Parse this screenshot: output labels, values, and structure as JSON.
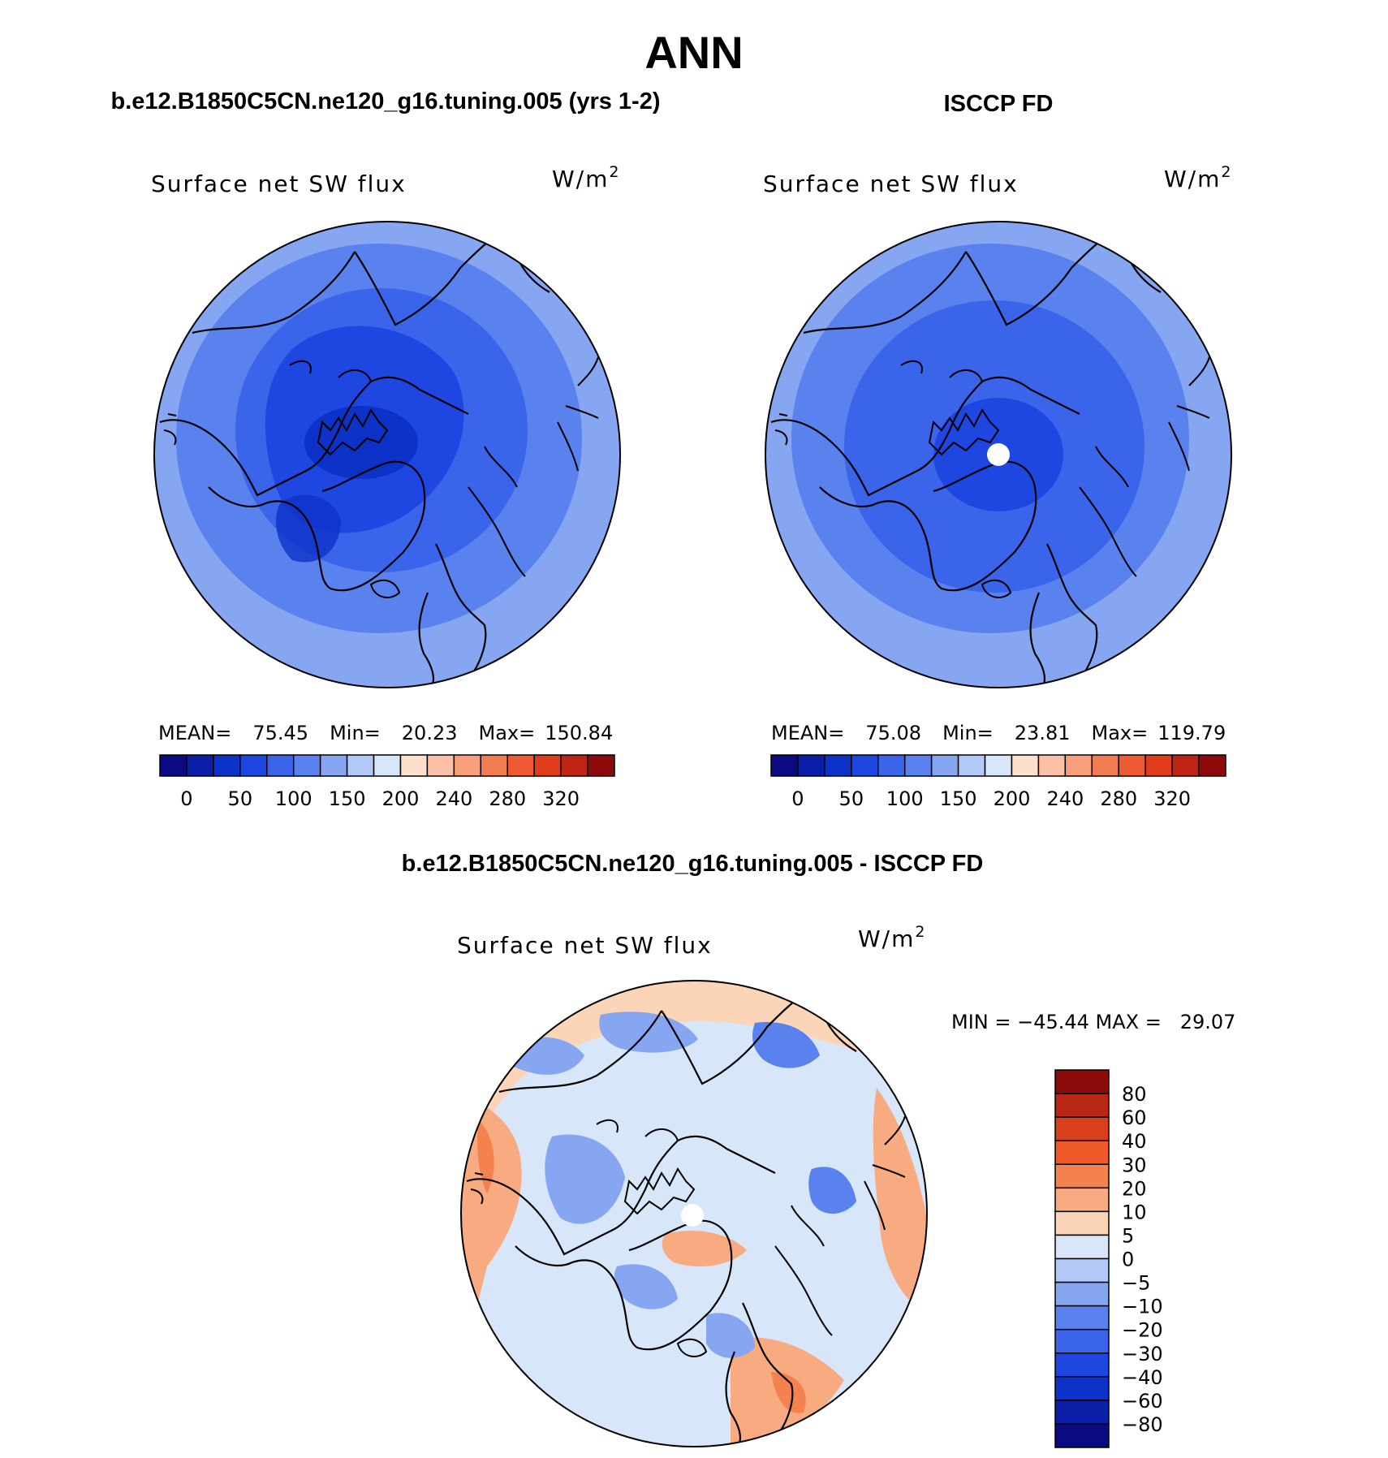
{
  "page_title": "ANN",
  "panels": [
    {
      "header": "b.e12.B1850C5CN.ne120_g16.tuning.005 (yrs 1-2)",
      "variable": "Surface net SW flux",
      "units": "W/m",
      "units_exp": "2",
      "stats": {
        "mean_label": "MEAN=",
        "mean": "75.45",
        "min_label": "Min=",
        "min": "20.23",
        "max_label": "Max=",
        "max": "150.84"
      }
    },
    {
      "header": "ISCCP FD",
      "variable": "Surface net SW flux",
      "units": "W/m",
      "units_exp": "2",
      "stats": {
        "mean_label": "MEAN=",
        "mean": "75.08",
        "min_label": "Min=",
        "min": "23.81",
        "max_label": "Max=",
        "max": "119.79"
      }
    },
    {
      "header": "b.e12.B1850C5CN.ne120_g16.tuning.005 - ISCCP FD",
      "variable": "Surface net SW flux",
      "units": "W/m",
      "units_exp": "2",
      "stats_text": "MIN = −45.44 MAX =   29.07"
    }
  ],
  "colorbar_abs": {
    "colors": [
      "#0a0a82",
      "#0b1ea8",
      "#0c32c8",
      "#1e46e0",
      "#3a64ea",
      "#5a82ee",
      "#86a6f2",
      "#b2c8f6",
      "#d8e6f9",
      "#fde0cc",
      "#fcc0a6",
      "#f8a07c",
      "#f27c52",
      "#ee5a32",
      "#e03c1c",
      "#c02414",
      "#8c0a0a"
    ],
    "labels": [
      "0",
      "50",
      "100",
      "150",
      "200",
      "240",
      "280",
      "320"
    ]
  },
  "colorbar_diff": {
    "colors": [
      "#8c0a0a",
      "#b82616",
      "#d8401c",
      "#f05a2a",
      "#f4824e",
      "#f8aa80",
      "#fcd4b8",
      "#d8e6f9",
      "#b2c8f6",
      "#86a6f2",
      "#5a82ee",
      "#3a64ea",
      "#1e46e0",
      "#0c32c8",
      "#0b1ea8",
      "#0a0a82"
    ],
    "labels": [
      "80",
      "60",
      "40",
      "30",
      "20",
      "10",
      "5",
      "0",
      "−5",
      "−10",
      "−20",
      "−30",
      "−40",
      "−60",
      "−80"
    ]
  },
  "map_fill": {
    "model": {
      "outer": "#86a6f2",
      "mid": "#5a82ee",
      "inner": "#3a64ea",
      "core": "#1e46e0",
      "pole": "#0c32c8"
    },
    "obs": {
      "outer": "#86a6f2",
      "mid": "#5a82ee",
      "inner": "#3a64ea",
      "core": "#1e46e0",
      "pole": "#1e46e0"
    },
    "diff": {
      "base": "#d8e6f9",
      "warm": "#f8aa80",
      "warm2": "#f4824e",
      "cool": "#86a6f2",
      "cool2": "#5a82ee",
      "pale": "#fcd4b8"
    }
  }
}
